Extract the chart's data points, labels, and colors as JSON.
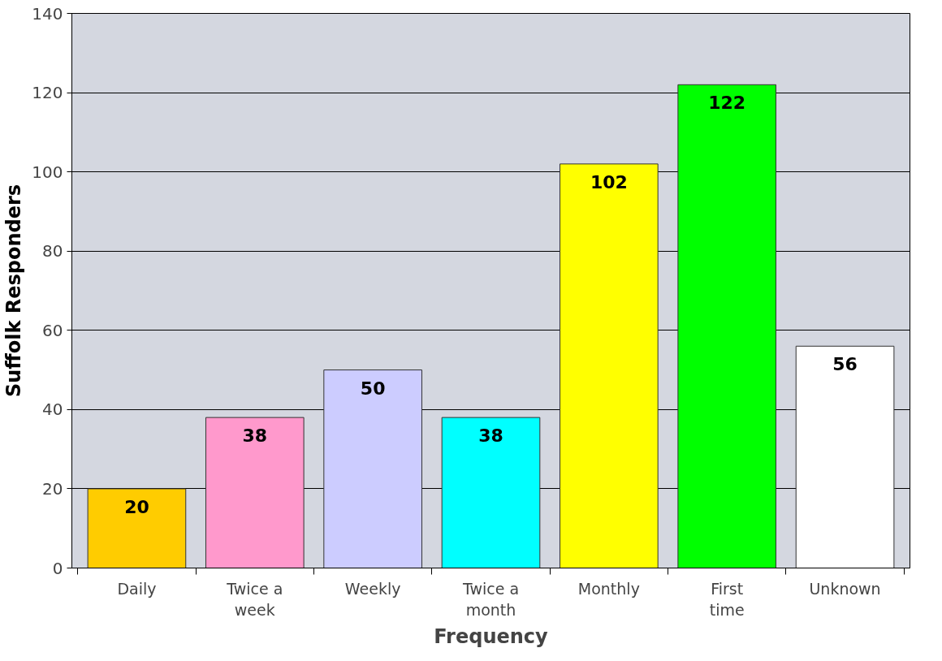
{
  "chart_data": {
    "type": "bar",
    "xlabel": "Frequency",
    "ylabel": "Suffolk Responders",
    "categories": [
      "Daily",
      "Twice a week",
      "Weekly",
      "Twice a month",
      "Monthly",
      "First time",
      "Unknown"
    ],
    "values": [
      20,
      38,
      50,
      38,
      102,
      122,
      56
    ],
    "colors": [
      "#ffcc00",
      "#ff99cc",
      "#ccccff",
      "#00ffff",
      "#ffff00",
      "#00ff00",
      "#ffffff"
    ],
    "ylim": [
      0,
      140
    ],
    "yticks": [
      0,
      20,
      40,
      60,
      80,
      100,
      120,
      140
    ],
    "grid": "y",
    "data_labels": true
  }
}
